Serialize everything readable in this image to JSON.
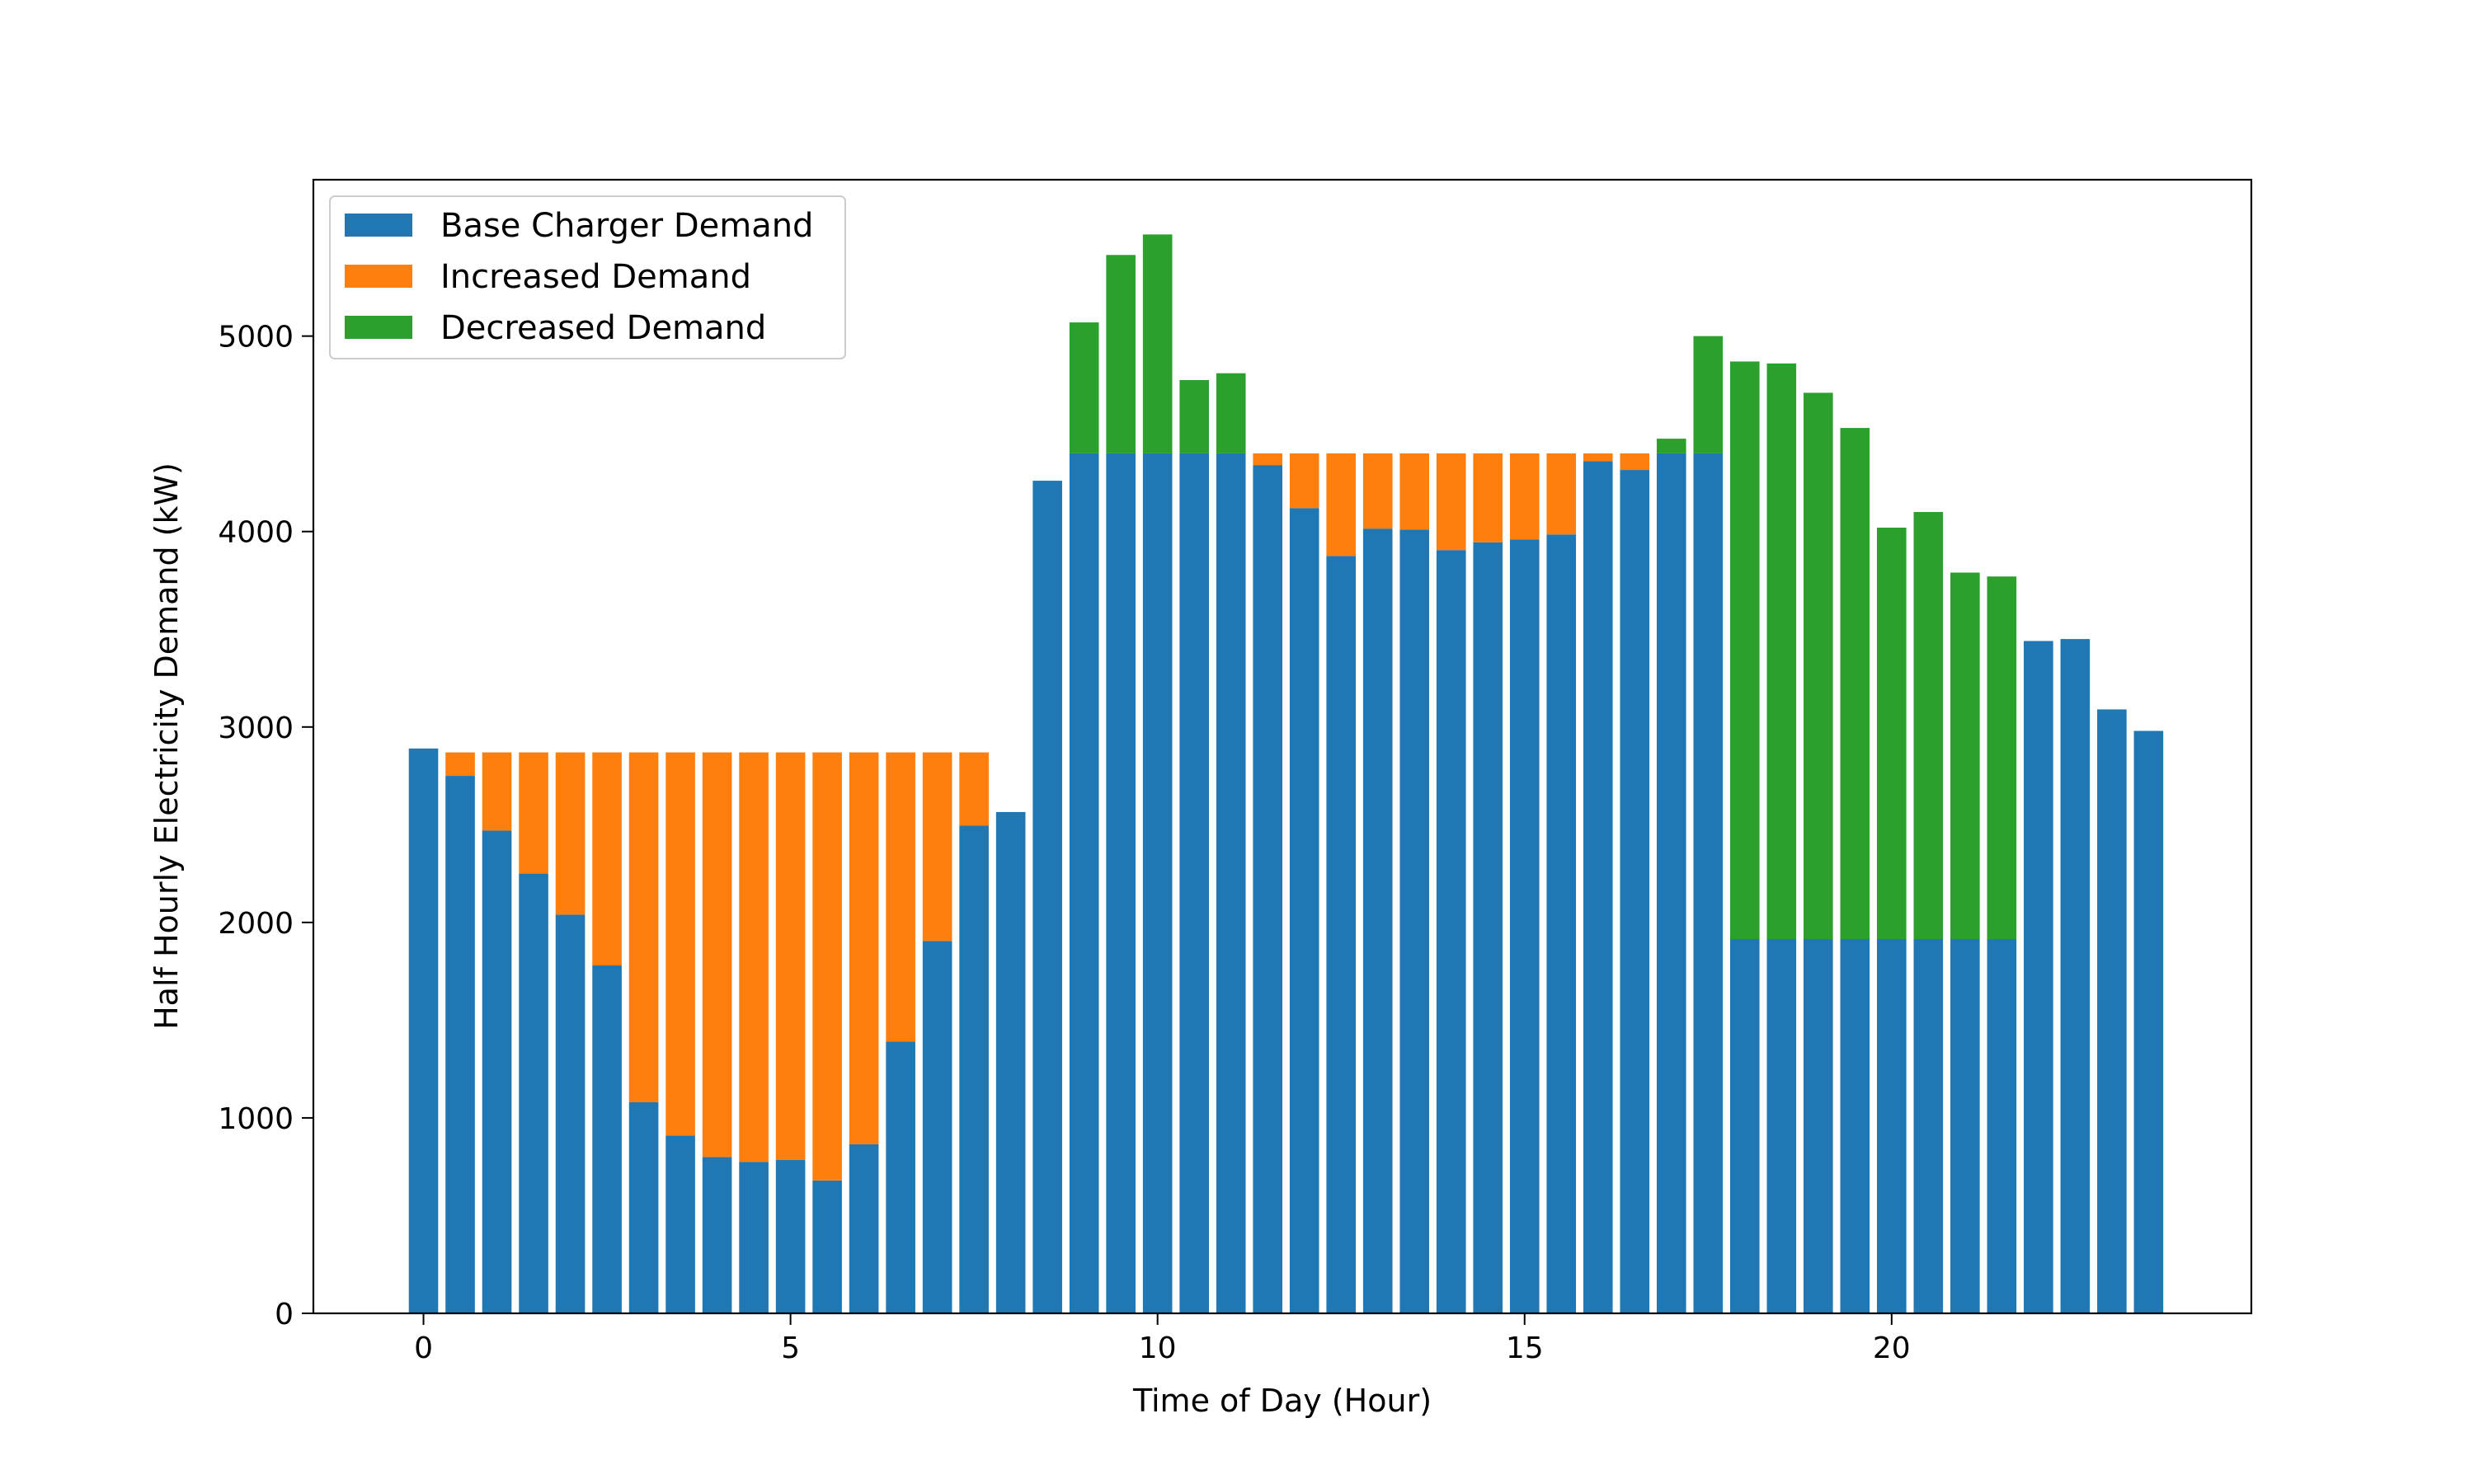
{
  "chart_data": {
    "type": "bar",
    "stacked": true,
    "title": "",
    "xlabel": "Time of Day (Hour)",
    "ylabel": "Half Hourly Electricity Demand (kW)",
    "xlim": [
      -1.5,
      24.9
    ],
    "ylim": [
      0,
      5800
    ],
    "xticks": [
      0,
      5,
      10,
      15,
      20
    ],
    "yticks": [
      0,
      1000,
      2000,
      3000,
      4000,
      5000
    ],
    "grid": false,
    "legend_position": "top-left",
    "x": [
      0,
      0.5,
      1,
      1.5,
      2,
      2.5,
      3,
      3.5,
      4,
      4.5,
      5,
      5.5,
      6,
      6.5,
      7,
      7.5,
      8,
      8.5,
      9,
      9.5,
      10,
      10.5,
      11,
      11.5,
      12,
      12.5,
      13,
      13.5,
      14,
      14.5,
      15,
      15.5,
      16,
      16.5,
      17,
      17.5,
      18,
      18.5,
      19,
      19.5,
      20,
      20.5,
      21,
      21.5,
      22,
      22.5,
      23,
      23.5
    ],
    "series": [
      {
        "name": "Base Charger Demand",
        "color": "#1f77b4",
        "values": [
          2890,
          2750,
          2470,
          2250,
          2040,
          1780,
          1080,
          910,
          800,
          775,
          785,
          680,
          865,
          1390,
          1905,
          2495,
          2565,
          4260,
          4400,
          4400,
          4400,
          4400,
          4400,
          4340,
          4120,
          3875,
          4015,
          4010,
          3905,
          3945,
          3960,
          3985,
          4360,
          4315,
          4400,
          4400,
          1915,
          1915,
          1915,
          1915,
          1915,
          1915,
          1915,
          1915,
          3440,
          3450,
          3090,
          2980
        ]
      },
      {
        "name": "Increased Demand",
        "color": "#ff7f0e",
        "values": [
          0,
          120,
          400,
          620,
          830,
          1090,
          1790,
          1960,
          2070,
          2095,
          2085,
          2190,
          2005,
          1480,
          965,
          375,
          0,
          0,
          0,
          0,
          0,
          0,
          0,
          60,
          280,
          525,
          385,
          390,
          495,
          455,
          440,
          415,
          40,
          85,
          0,
          0,
          0,
          0,
          0,
          0,
          0,
          0,
          0,
          0,
          0,
          0,
          0,
          0
        ]
      },
      {
        "name": "Decreased Demand",
        "color": "#2ca02c",
        "values": [
          0,
          0,
          0,
          0,
          0,
          0,
          0,
          0,
          0,
          0,
          0,
          0,
          0,
          0,
          0,
          0,
          0,
          0,
          670,
          1015,
          1120,
          375,
          410,
          0,
          0,
          0,
          0,
          0,
          0,
          0,
          0,
          0,
          0,
          0,
          75,
          600,
          2955,
          2945,
          2795,
          2615,
          2105,
          2185,
          1875,
          1855,
          0,
          0,
          0,
          0
        ]
      }
    ]
  }
}
